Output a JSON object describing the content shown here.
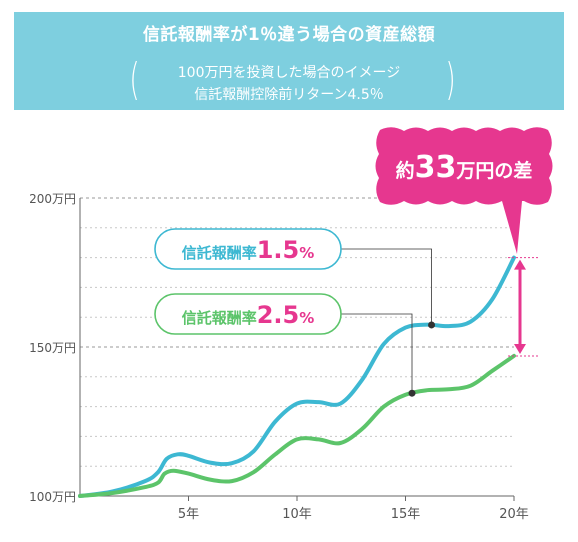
{
  "header": {
    "title": "信託報酬率が1％違う場合の資産総額",
    "subtitle_line1": "100万円を投資した場合のイメージ",
    "subtitle_line2": "信託報酬控除前リターン4.5％",
    "paren_open": "(",
    "paren_close": ")"
  },
  "callouts": {
    "difference": {
      "prefix": "約",
      "value": "33",
      "suffix": "万円の差"
    },
    "fee_low": {
      "label": "信託報酬率",
      "value": "1.5",
      "unit": "%"
    },
    "fee_high": {
      "label": "信託報酬率",
      "value": "2.5",
      "unit": "%"
    }
  },
  "colors": {
    "header_bg": "#7ecfdf",
    "series_low": "#3db8d2",
    "series_high": "#5cc46a",
    "accent": "#e6378f",
    "grid": "#c8c8c8"
  },
  "chart_data": {
    "type": "line",
    "xlim": [
      0,
      20
    ],
    "ylim": [
      100,
      200
    ],
    "x_ticks": [
      {
        "value": 5,
        "label": "5年"
      },
      {
        "value": 10,
        "label": "10年"
      },
      {
        "value": 15,
        "label": "15年"
      },
      {
        "value": 20,
        "label": "20年"
      }
    ],
    "y_ticks": [
      {
        "value": 100,
        "label": "100万円"
      },
      {
        "value": 150,
        "label": "150万円"
      },
      {
        "value": 200,
        "label": "200万円"
      }
    ],
    "grid_y": [
      110,
      120,
      130,
      140,
      160,
      170,
      180,
      190
    ],
    "series": [
      {
        "name": "信託報酬率1.5%",
        "color": "#3db8d2",
        "points": [
          [
            0,
            100
          ],
          [
            1.5,
            101.5
          ],
          [
            3,
            105
          ],
          [
            3.6,
            108
          ],
          [
            4,
            112.5
          ],
          [
            4.5,
            114
          ],
          [
            5,
            113.5
          ],
          [
            6,
            111.2
          ],
          [
            7,
            111
          ],
          [
            8,
            115
          ],
          [
            9,
            125
          ],
          [
            10,
            131
          ],
          [
            11,
            131.5
          ],
          [
            12,
            131
          ],
          [
            13,
            139
          ],
          [
            14,
            151
          ],
          [
            15,
            156.5
          ],
          [
            16,
            157.5
          ],
          [
            17,
            157
          ],
          [
            18,
            158.5
          ],
          [
            19,
            166
          ],
          [
            20,
            180
          ]
        ]
      },
      {
        "name": "信託報酬率2.5%",
        "color": "#5cc46a",
        "points": [
          [
            0,
            100
          ],
          [
            1.5,
            101
          ],
          [
            3,
            103
          ],
          [
            3.6,
            104.5
          ],
          [
            3.9,
            107.5
          ],
          [
            4.3,
            108.5
          ],
          [
            5,
            107.5
          ],
          [
            6,
            105.5
          ],
          [
            7,
            105
          ],
          [
            8,
            108
          ],
          [
            9,
            114
          ],
          [
            10,
            119
          ],
          [
            11,
            119
          ],
          [
            12,
            117.8
          ],
          [
            13,
            122.5
          ],
          [
            14,
            130
          ],
          [
            15,
            134
          ],
          [
            16,
            135.5
          ],
          [
            17,
            135.8
          ],
          [
            18,
            137
          ],
          [
            19,
            142
          ],
          [
            20,
            147
          ]
        ]
      }
    ],
    "markers": [
      {
        "series": 0,
        "x": 16.2,
        "y": 157.4
      },
      {
        "series": 1,
        "x": 15.3,
        "y": 134.5
      }
    ],
    "difference_range": [
      147,
      180
    ]
  }
}
